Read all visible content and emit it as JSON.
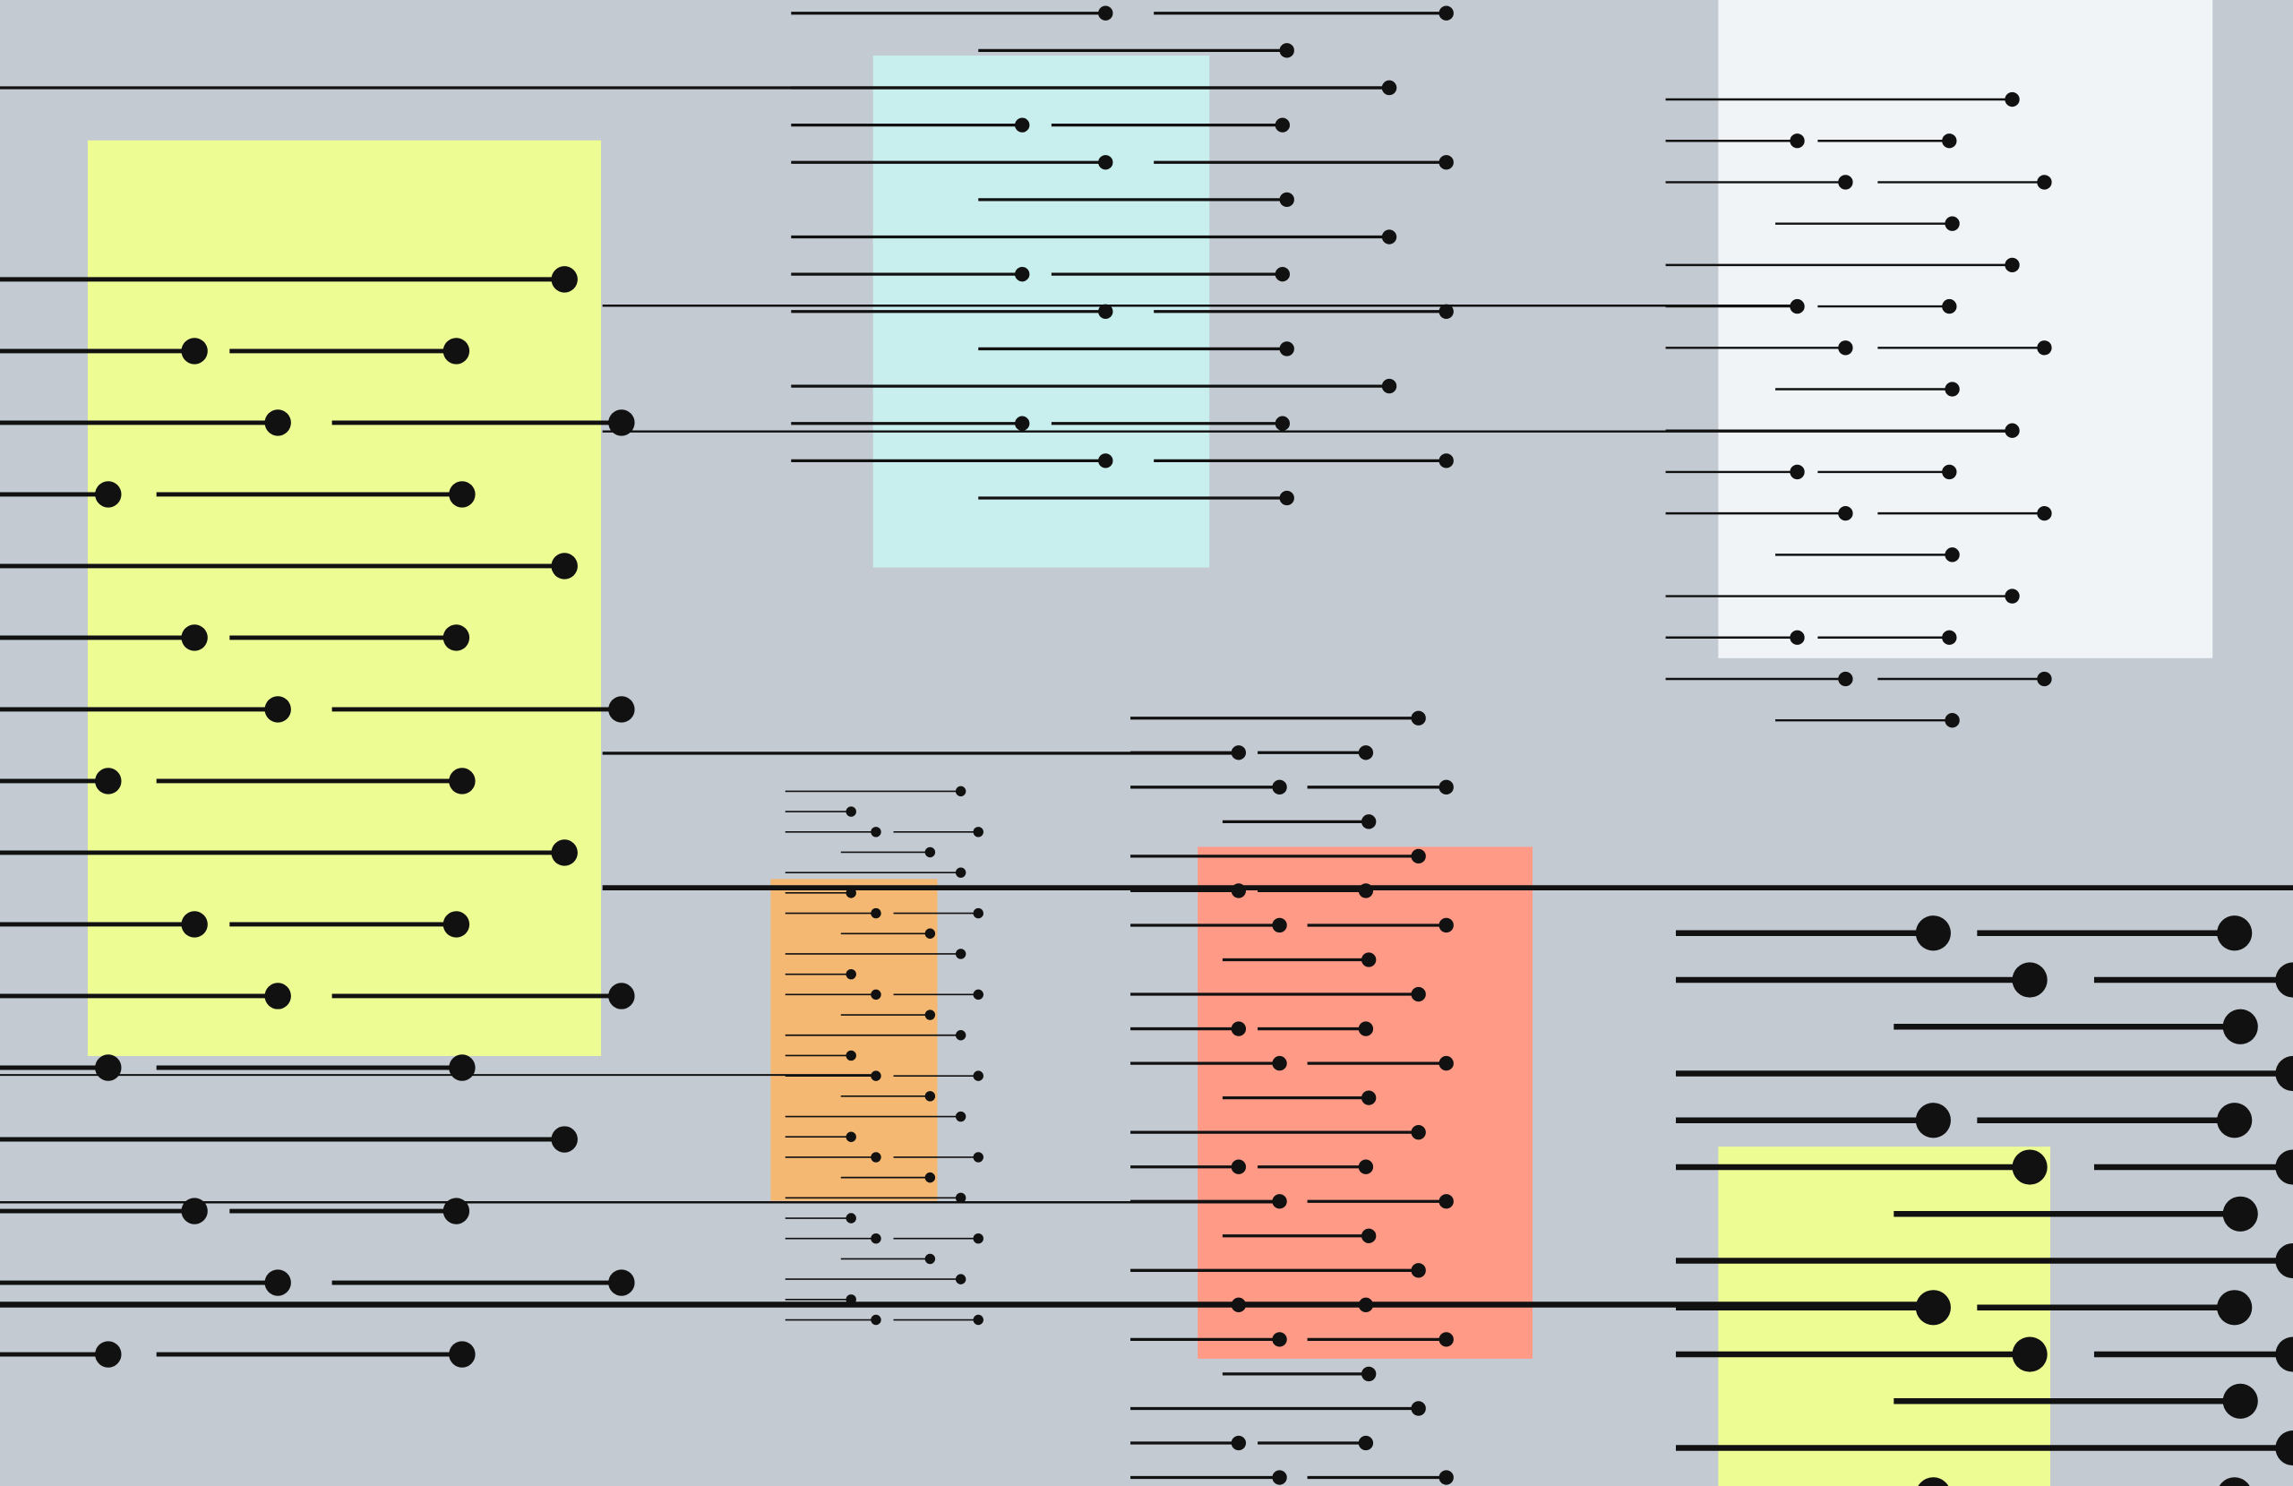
{
  "palette": {
    "background": "#c3cad2",
    "ink": "#111111",
    "yellow": "#eefd93",
    "cyan": "#c8efee",
    "white": "#f0f4f7",
    "orange": "#f5b872",
    "salmon": "#ff9a87"
  },
  "composition": {
    "panels": [
      {
        "name": "yellow-panel-left",
        "color": "yellow"
      },
      {
        "name": "cyan-panel",
        "color": "cyan"
      },
      {
        "name": "white-panel",
        "color": "white"
      },
      {
        "name": "orange-panel",
        "color": "orange"
      },
      {
        "name": "salmon-panel",
        "color": "salmon"
      },
      {
        "name": "yellow-panel-bottom-right",
        "color": "yellow"
      }
    ]
  }
}
